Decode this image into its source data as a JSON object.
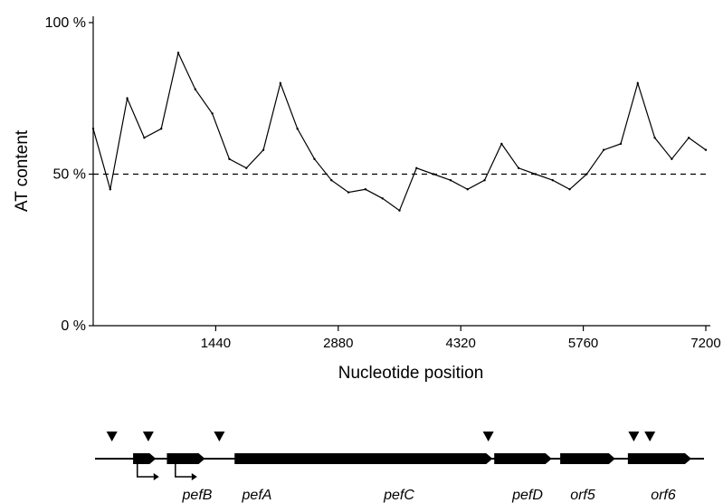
{
  "chart_data": {
    "type": "line",
    "xlabel": "Nucleotide position",
    "ylabel": "AT content",
    "xlim": [
      0,
      7200
    ],
    "ylim": [
      0,
      100
    ],
    "yticks": [
      {
        "value": 0,
        "label": "0 %"
      },
      {
        "value": 50,
        "label": "50 %"
      },
      {
        "value": 100,
        "label": "100 %"
      }
    ],
    "xticks": [
      {
        "value": 1440,
        "label": "1440"
      },
      {
        "value": 2880,
        "label": "2880"
      },
      {
        "value": 4320,
        "label": "4320"
      },
      {
        "value": 5760,
        "label": "5760"
      },
      {
        "value": 7200,
        "label": "7200"
      }
    ],
    "reference_line": {
      "value": 50,
      "style": "dashed"
    },
    "series": [
      {
        "x": [
          0,
          200,
          400,
          600,
          800,
          1000,
          1200,
          1400,
          1600,
          1800,
          2000,
          2200,
          2400,
          2600,
          2800,
          3000,
          3200,
          3400,
          3600,
          3800,
          4000,
          4200,
          4400,
          4600,
          4800,
          5000,
          5200,
          5400,
          5600,
          5800,
          6000,
          6200,
          6400,
          6600,
          6800,
          7000,
          7200
        ],
        "y": [
          65,
          45,
          75,
          62,
          65,
          90,
          78,
          70,
          55,
          52,
          58,
          80,
          65,
          55,
          48,
          44,
          45,
          42,
          38,
          52,
          50,
          48,
          45,
          48,
          60,
          52,
          50,
          48,
          45,
          50,
          58,
          60,
          80,
          62,
          55,
          62,
          58
        ]
      }
    ]
  },
  "gene_map": {
    "labels": [
      "pefB",
      "pefA",
      "pefC",
      "pefD",
      "orf5",
      "orf6"
    ],
    "genes": [
      {
        "start": 450,
        "end": 720
      },
      {
        "start": 850,
        "end": 1300
      },
      {
        "start": 1650,
        "end": 4700
      },
      {
        "start": 4720,
        "end": 5400
      },
      {
        "start": 5500,
        "end": 6150
      },
      {
        "start": 6300,
        "end": 7050
      }
    ],
    "promoters": [
      500,
      950
    ],
    "markers": [
      200,
      630,
      1470,
      4650,
      6370,
      6560
    ]
  }
}
